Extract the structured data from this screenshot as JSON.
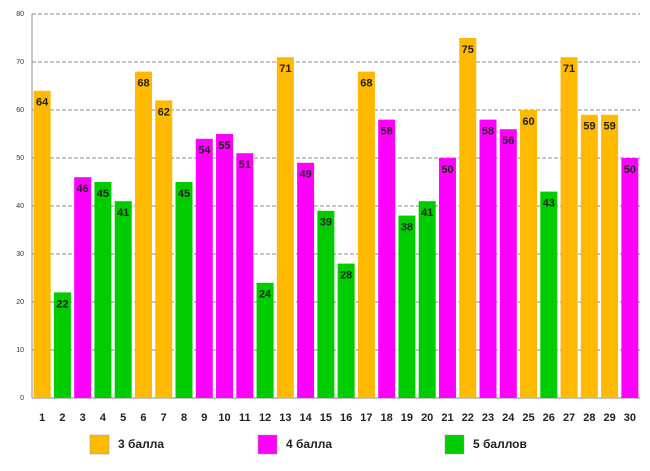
{
  "chart_data": {
    "type": "bar",
    "categories": [
      "1",
      "2",
      "3",
      "4",
      "5",
      "6",
      "7",
      "8",
      "9",
      "10",
      "11",
      "12",
      "13",
      "14",
      "15",
      "16",
      "17",
      "18",
      "19",
      "20",
      "21",
      "22",
      "23",
      "24",
      "25",
      "26",
      "27",
      "28",
      "29",
      "30"
    ],
    "series": [
      {
        "name": "3 балла",
        "color": "#ffb900",
        "values": [
          64,
          null,
          null,
          null,
          null,
          68,
          62,
          null,
          null,
          null,
          null,
          null,
          71,
          null,
          null,
          null,
          68,
          null,
          null,
          null,
          null,
          75,
          null,
          null,
          60,
          null,
          71,
          59,
          59,
          null
        ]
      },
      {
        "name": "4 балла",
        "color": "#ff00ff",
        "values": [
          null,
          null,
          46,
          null,
          null,
          null,
          null,
          null,
          54,
          55,
          51,
          null,
          null,
          49,
          null,
          null,
          null,
          58,
          null,
          null,
          50,
          null,
          58,
          56,
          null,
          null,
          null,
          null,
          null,
          50
        ]
      },
      {
        "name": "5 баллов",
        "color": "#00cc00",
        "values": [
          null,
          22,
          null,
          45,
          41,
          null,
          null,
          45,
          null,
          null,
          null,
          24,
          null,
          null,
          39,
          28,
          null,
          null,
          38,
          41,
          null,
          null,
          null,
          null,
          null,
          43,
          null,
          null,
          null,
          null
        ]
      }
    ],
    "ylim": [
      0,
      80
    ],
    "yticks": [
      0,
      10,
      20,
      30,
      40,
      50,
      60,
      70,
      80
    ],
    "grid": true
  }
}
